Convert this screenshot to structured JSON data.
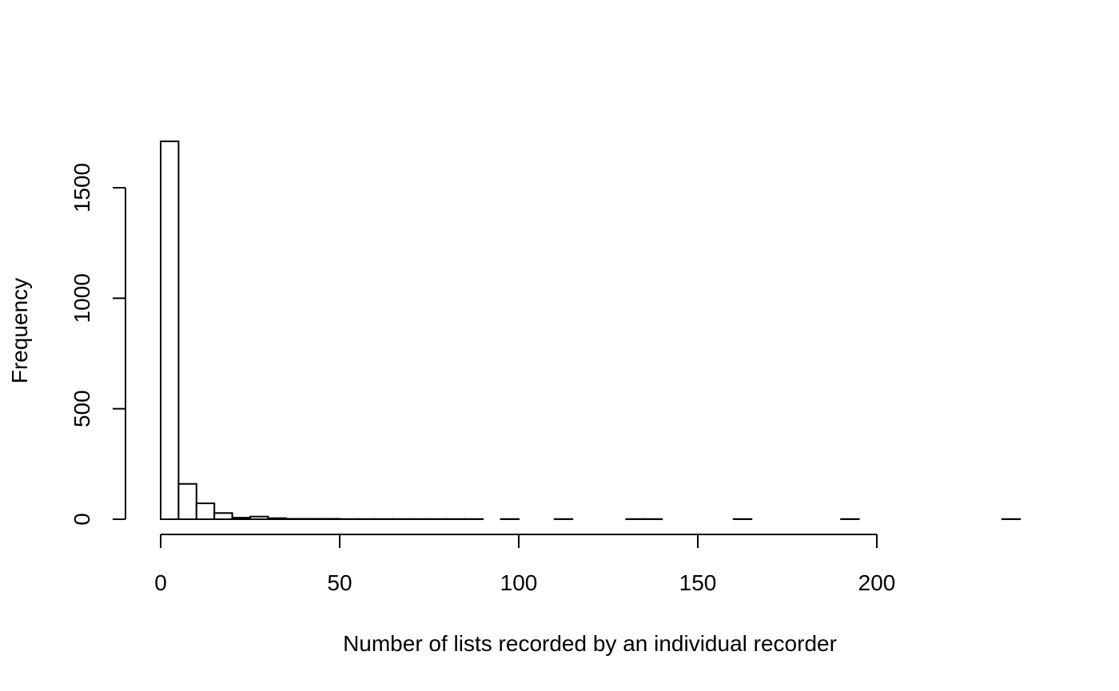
{
  "chart_data": {
    "type": "bar",
    "title": "",
    "xlabel": "Number of lists recorded by an individual recorder",
    "ylabel": "Frequency",
    "bin_width": 5,
    "bins": [
      {
        "x0": 0,
        "x1": 5,
        "count": 1710
      },
      {
        "x0": 5,
        "x1": 10,
        "count": 160
      },
      {
        "x0": 10,
        "x1": 15,
        "count": 72
      },
      {
        "x0": 15,
        "x1": 20,
        "count": 28
      },
      {
        "x0": 20,
        "x1": 25,
        "count": 7
      },
      {
        "x0": 25,
        "x1": 30,
        "count": 12
      },
      {
        "x0": 30,
        "x1": 35,
        "count": 5
      },
      {
        "x0": 35,
        "x1": 40,
        "count": 2
      },
      {
        "x0": 40,
        "x1": 45,
        "count": 2
      },
      {
        "x0": 45,
        "x1": 50,
        "count": 2
      },
      {
        "x0": 50,
        "x1": 55,
        "count": 1
      },
      {
        "x0": 55,
        "x1": 60,
        "count": 1
      },
      {
        "x0": 60,
        "x1": 65,
        "count": 1
      },
      {
        "x0": 65,
        "x1": 70,
        "count": 1
      },
      {
        "x0": 70,
        "x1": 75,
        "count": 1
      },
      {
        "x0": 75,
        "x1": 80,
        "count": 1
      },
      {
        "x0": 80,
        "x1": 85,
        "count": 1
      },
      {
        "x0": 85,
        "x1": 90,
        "count": 1
      },
      {
        "x0": 95,
        "x1": 100,
        "count": 1
      },
      {
        "x0": 110,
        "x1": 115,
        "count": 1
      },
      {
        "x0": 130,
        "x1": 135,
        "count": 1
      },
      {
        "x0": 135,
        "x1": 140,
        "count": 1
      },
      {
        "x0": 160,
        "x1": 165,
        "count": 1
      },
      {
        "x0": 190,
        "x1": 195,
        "count": 1
      },
      {
        "x0": 235,
        "x1": 240,
        "count": 1
      }
    ],
    "xlim": [
      0,
      240
    ],
    "ylim": [
      0,
      1710
    ],
    "x_ticks": [
      0,
      50,
      100,
      150,
      200
    ],
    "y_ticks": [
      0,
      500,
      1000,
      1500
    ],
    "grid": false,
    "legend": "none"
  }
}
